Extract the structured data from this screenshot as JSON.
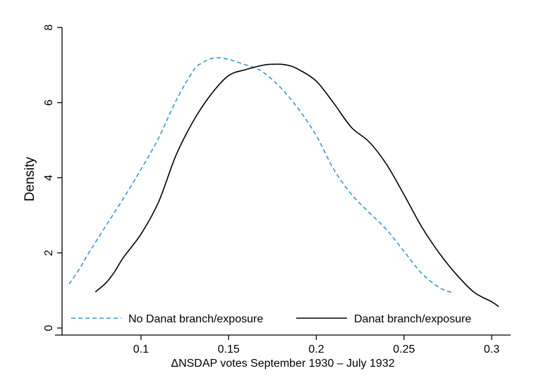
{
  "chart_data": {
    "type": "line",
    "title": "",
    "xlabel": "ΔNSDAP votes September 1930 – July 1932",
    "ylabel": "Density",
    "xlim": [
      0.055,
      0.31
    ],
    "ylim": [
      0,
      8
    ],
    "x_ticks": [
      0.1,
      0.15,
      0.2,
      0.25,
      0.3
    ],
    "x_tick_labels": [
      "0.1",
      "0.15",
      "0.2",
      "0.25",
      "0.3"
    ],
    "y_ticks": [
      0,
      2,
      4,
      6,
      8
    ],
    "y_tick_labels": [
      "0",
      "2",
      "4",
      "6",
      "8"
    ],
    "grid": false,
    "legend_position": "bottom-inside",
    "series": [
      {
        "name": "No Danat branch/exposure",
        "color": "#3a97c9",
        "dash": "dashed",
        "points": [
          [
            0.059,
            1.17
          ],
          [
            0.065,
            1.58
          ],
          [
            0.07,
            1.98
          ],
          [
            0.08,
            2.72
          ],
          [
            0.09,
            3.45
          ],
          [
            0.1,
            4.22
          ],
          [
            0.11,
            5.05
          ],
          [
            0.12,
            6.05
          ],
          [
            0.13,
            6.86
          ],
          [
            0.135,
            7.06
          ],
          [
            0.14,
            7.17
          ],
          [
            0.145,
            7.19
          ],
          [
            0.15,
            7.15
          ],
          [
            0.155,
            7.08
          ],
          [
            0.16,
            7.0
          ],
          [
            0.165,
            6.92
          ],
          [
            0.17,
            6.8
          ],
          [
            0.18,
            6.38
          ],
          [
            0.19,
            5.82
          ],
          [
            0.2,
            5.12
          ],
          [
            0.21,
            4.22
          ],
          [
            0.22,
            3.56
          ],
          [
            0.23,
            3.08
          ],
          [
            0.24,
            2.62
          ],
          [
            0.25,
            2.04
          ],
          [
            0.26,
            1.46
          ],
          [
            0.27,
            1.08
          ],
          [
            0.277,
            0.95
          ]
        ]
      },
      {
        "name": "Danat branch/exposure",
        "color": "#000000",
        "dash": "solid",
        "points": [
          [
            0.074,
            0.96
          ],
          [
            0.08,
            1.2
          ],
          [
            0.085,
            1.5
          ],
          [
            0.09,
            1.88
          ],
          [
            0.1,
            2.5
          ],
          [
            0.11,
            3.35
          ],
          [
            0.12,
            4.6
          ],
          [
            0.13,
            5.52
          ],
          [
            0.14,
            6.22
          ],
          [
            0.15,
            6.72
          ],
          [
            0.16,
            6.88
          ],
          [
            0.17,
            7.0
          ],
          [
            0.175,
            7.02
          ],
          [
            0.18,
            7.02
          ],
          [
            0.185,
            6.98
          ],
          [
            0.19,
            6.88
          ],
          [
            0.2,
            6.57
          ],
          [
            0.21,
            5.98
          ],
          [
            0.22,
            5.34
          ],
          [
            0.23,
            4.96
          ],
          [
            0.24,
            4.36
          ],
          [
            0.25,
            3.55
          ],
          [
            0.26,
            2.7
          ],
          [
            0.27,
            2.0
          ],
          [
            0.28,
            1.42
          ],
          [
            0.29,
            0.95
          ],
          [
            0.3,
            0.7
          ],
          [
            0.304,
            0.57
          ]
        ]
      }
    ]
  }
}
